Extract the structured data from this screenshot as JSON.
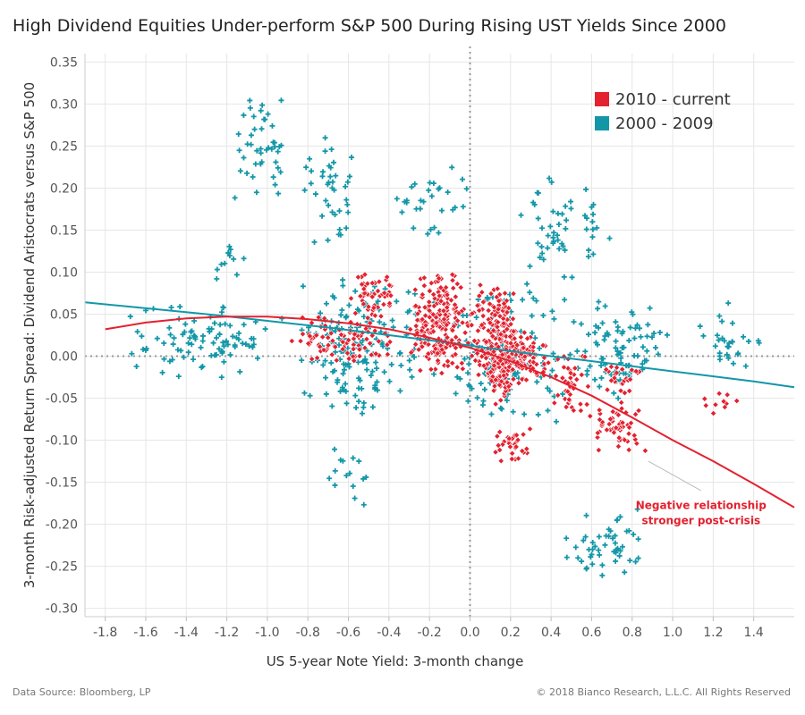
{
  "title": "High Dividend Equities Under-perform S&P 500 During Rising UST Yields Since 2000",
  "source": "Data Source: Bloomberg, LP",
  "copyright": "© 2018 Bianco Research, L.L.C. All Rights Reserved",
  "colors": {
    "series_2010": "#e3212f",
    "series_2000": "#1397a8",
    "zero_line": "#999999",
    "grid": "#e6e6e6"
  },
  "chart_data": {
    "type": "scatter",
    "title": "High Dividend Equities Under-perform S&P 500 During Rising UST Yields Since 2000",
    "xlabel": "US 5-year Note Yield: 3-month change",
    "ylabel": "3-month Risk-adjusted Return Spread: Dividend Aristocrats versus S&P 500",
    "xlim": [
      -1.9,
      1.6
    ],
    "ylim": [
      -0.31,
      0.36
    ],
    "x_ticks": [
      "-1.8",
      "-1.6",
      "-1.4",
      "-1.2",
      "-1.0",
      "-0.8",
      "-0.6",
      "-0.4",
      "-0.2",
      "0.0",
      "0.2",
      "0.4",
      "0.6",
      "0.8",
      "1.0",
      "1.2",
      "1.4"
    ],
    "x_tick_values": [
      -1.8,
      -1.6,
      -1.4,
      -1.2,
      -1.0,
      -0.8,
      -0.6,
      -0.4,
      -0.2,
      0.0,
      0.2,
      0.4,
      0.6,
      0.8,
      1.0,
      1.2,
      1.4
    ],
    "y_ticks": [
      "0.35",
      "0.30",
      "0.25",
      "0.20",
      "0.15",
      "0.10",
      "0.05",
      "0.00",
      "-0.05",
      "-0.10",
      "-0.15",
      "-0.20",
      "-0.25",
      "-0.30"
    ],
    "y_tick_values": [
      0.35,
      0.3,
      0.25,
      0.2,
      0.15,
      0.1,
      0.05,
      0.0,
      -0.05,
      -0.1,
      -0.15,
      -0.2,
      -0.25,
      -0.3
    ],
    "grid": true,
    "legend_position": "top-right",
    "series": [
      {
        "name": "2010 - current",
        "marker": "diamond",
        "trend": [
          [
            -1.8,
            0.032
          ],
          [
            -1.6,
            0.04
          ],
          [
            -1.4,
            0.045
          ],
          [
            -1.2,
            0.047
          ],
          [
            -1.0,
            0.047
          ],
          [
            -0.8,
            0.044
          ],
          [
            -0.6,
            0.039
          ],
          [
            -0.4,
            0.032
          ],
          [
            -0.2,
            0.022
          ],
          [
            0.0,
            0.01
          ],
          [
            0.2,
            -0.006
          ],
          [
            0.4,
            -0.025
          ],
          [
            0.6,
            -0.047
          ],
          [
            0.8,
            -0.073
          ],
          [
            1.0,
            -0.1
          ],
          [
            1.2,
            -0.125
          ],
          [
            1.4,
            -0.152
          ],
          [
            1.6,
            -0.18
          ]
        ],
        "clusters": [
          {
            "x": [
              -0.9,
              -0.35
            ],
            "y": [
              -0.01,
              0.05
            ],
            "n": 90
          },
          {
            "x": [
              -0.6,
              -0.35
            ],
            "y": [
              0.04,
              0.1
            ],
            "n": 50
          },
          {
            "x": [
              -0.3,
              0.0
            ],
            "y": [
              -0.03,
              0.11
            ],
            "n": 220
          },
          {
            "x": [
              0.0,
              0.25
            ],
            "y": [
              -0.06,
              0.09
            ],
            "n": 230
          },
          {
            "x": [
              0.1,
              0.4
            ],
            "y": [
              -0.04,
              0.04
            ],
            "n": 110
          },
          {
            "x": [
              0.1,
              0.3
            ],
            "y": [
              -0.13,
              -0.08
            ],
            "n": 35
          },
          {
            "x": [
              0.4,
              0.6
            ],
            "y": [
              -0.07,
              0.01
            ],
            "n": 40
          },
          {
            "x": [
              0.55,
              0.9
            ],
            "y": [
              -0.12,
              -0.05
            ],
            "n": 55
          },
          {
            "x": [
              0.6,
              0.85
            ],
            "y": [
              -0.05,
              0.0
            ],
            "n": 25
          },
          {
            "x": [
              1.1,
              1.35
            ],
            "y": [
              -0.07,
              -0.04
            ],
            "n": 10
          }
        ]
      },
      {
        "name": "2000 - 2009",
        "marker": "plus",
        "trend": [
          [
            -1.9,
            0.064
          ],
          [
            -1.6,
            0.057
          ],
          [
            -1.3,
            0.05
          ],
          [
            -1.0,
            0.042
          ],
          [
            -0.7,
            0.034
          ],
          [
            -0.4,
            0.025
          ],
          [
            -0.1,
            0.016
          ],
          [
            0.2,
            0.006
          ],
          [
            0.5,
            -0.003
          ],
          [
            0.8,
            -0.012
          ],
          [
            1.1,
            -0.021
          ],
          [
            1.4,
            -0.03
          ],
          [
            1.6,
            -0.037
          ]
        ],
        "clusters": [
          {
            "x": [
              -1.2,
              -0.85
            ],
            "y": [
              0.17,
              0.32
            ],
            "n": 45
          },
          {
            "x": [
              -0.85,
              -0.55
            ],
            "y": [
              0.12,
              0.27
            ],
            "n": 40
          },
          {
            "x": [
              -0.4,
              0.05
            ],
            "y": [
              0.14,
              0.23
            ],
            "n": 30
          },
          {
            "x": [
              0.2,
              0.7
            ],
            "y": [
              0.07,
              0.22
            ],
            "n": 55
          },
          {
            "x": [
              -1.7,
              -0.9
            ],
            "y": [
              -0.03,
              0.07
            ],
            "n": 95
          },
          {
            "x": [
              -0.9,
              -0.2
            ],
            "y": [
              -0.07,
              0.1
            ],
            "n": 170
          },
          {
            "x": [
              -0.2,
              0.5
            ],
            "y": [
              -0.09,
              0.09
            ],
            "n": 120
          },
          {
            "x": [
              0.4,
              1.0
            ],
            "y": [
              -0.06,
              0.07
            ],
            "n": 90
          },
          {
            "x": [
              1.1,
              1.45
            ],
            "y": [
              -0.04,
              0.07
            ],
            "n": 30
          },
          {
            "x": [
              -0.75,
              -0.5
            ],
            "y": [
              -0.19,
              -0.1
            ],
            "n": 15
          },
          {
            "x": [
              0.45,
              0.9
            ],
            "y": [
              -0.28,
              -0.17
            ],
            "n": 50
          },
          {
            "x": [
              -1.3,
              -1.1
            ],
            "y": [
              0.08,
              0.14
            ],
            "n": 12
          }
        ]
      }
    ],
    "annotation": {
      "text_line1": "Negative relationship",
      "text_line2": "stronger post-crisis",
      "x": 1.14,
      "y": -0.182,
      "pointer_from": [
        1.14,
        -0.16
      ],
      "pointer_to": [
        0.88,
        -0.125
      ]
    }
  }
}
